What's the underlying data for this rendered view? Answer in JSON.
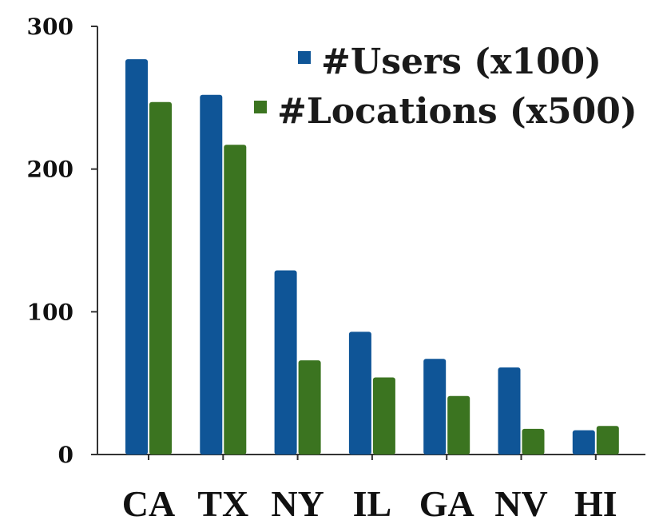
{
  "chart_data": {
    "type": "bar",
    "categories": [
      "CA",
      "TX",
      "NY",
      "IL",
      "GA",
      "NV",
      "HI"
    ],
    "series": [
      {
        "name": "#Users (x100)",
        "values": [
          277,
          252,
          129,
          86,
          67,
          61,
          17
        ]
      },
      {
        "name": "#Locations (x500)",
        "values": [
          247,
          217,
          66,
          54,
          41,
          18,
          20
        ]
      }
    ],
    "colors": [
      "#0f5597",
      "#3b7420"
    ],
    "title": "",
    "xlabel": "",
    "ylabel": "",
    "ylim": [
      0,
      300
    ],
    "yticks": [
      "0",
      "100",
      "200",
      "300"
    ],
    "grid": false,
    "legend": "top-right"
  }
}
